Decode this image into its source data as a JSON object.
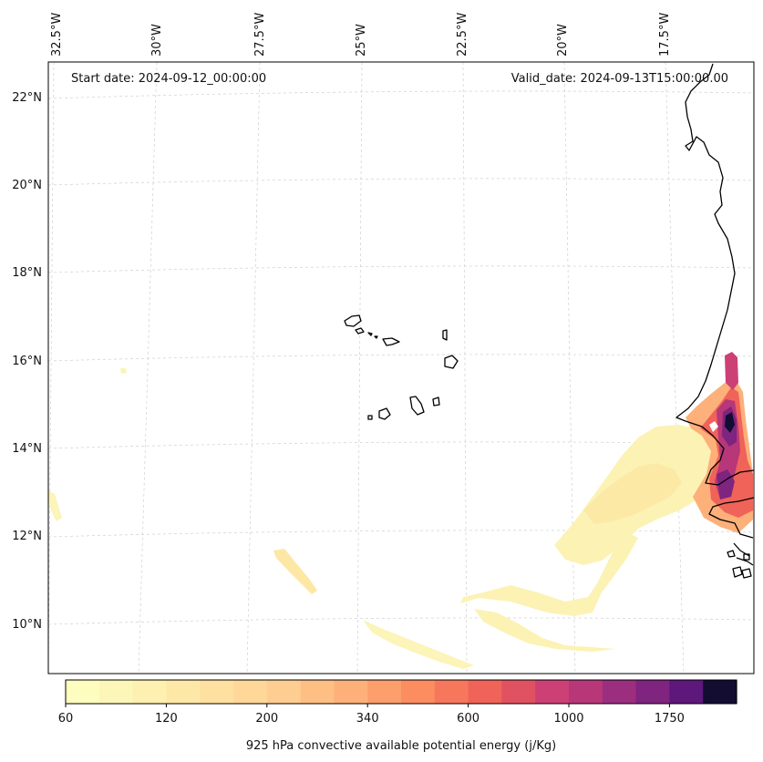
{
  "map": {
    "start_label": "Start date: 2024-09-12_00:00:00",
    "valid_label": "Valid_date: 2024-09-13T15:00:00.00",
    "lon_labels": [
      "32.5°W",
      "30°W",
      "27.5°W",
      "25°W",
      "22.5°W",
      "20°W",
      "17.5°W"
    ],
    "lat_labels": [
      "22°N",
      "20°N",
      "18°N",
      "16°N",
      "14°N",
      "12°N",
      "10°N"
    ]
  },
  "colorbar": {
    "title": "925 hPa convective available potential energy (j/Kg)",
    "tick_labels": [
      "60",
      "120",
      "200",
      "340",
      "600",
      "1000",
      "1750"
    ],
    "colors": [
      "#fcfdbf",
      "#fcf6b8",
      "#fdf0b0",
      "#fee8a8",
      "#fee0a0",
      "#fed799",
      "#fecd91",
      "#febf84",
      "#fdb07a",
      "#fd9f6c",
      "#fb8d61",
      "#f7775c",
      "#f06358",
      "#e05262",
      "#cc4076",
      "#b73779",
      "#9c2e7f",
      "#7f247f",
      "#5e177b",
      "#120d31"
    ]
  }
}
